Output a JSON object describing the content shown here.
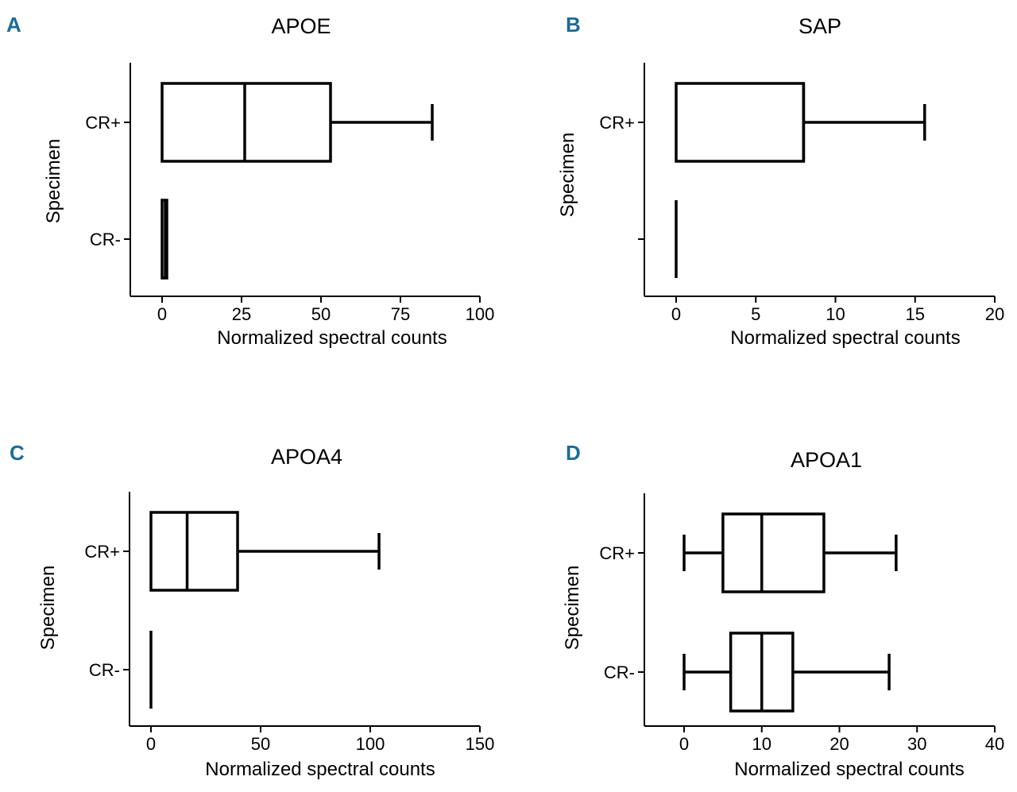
{
  "colors": {
    "panel_letter": "#1a6c96",
    "ink": "#000000"
  },
  "chart_data": [
    {
      "type": "boxplot",
      "panel": "A",
      "title": "APOE",
      "xlabel": "Normalized spectral counts",
      "ylabel": "Specimen",
      "xlim": [
        -10,
        100
      ],
      "xticks": [
        0,
        25,
        50,
        75,
        100
      ],
      "xtick_labels": [
        "0",
        "25",
        "50",
        "75",
        "100"
      ],
      "categories": [
        "CR+",
        "CR-"
      ],
      "series": [
        {
          "name": "CR+",
          "min": 0,
          "q1": 0,
          "median": 26,
          "q3": 53,
          "max": 85
        },
        {
          "name": "CR-",
          "min": 0,
          "q1": 0,
          "median": 1,
          "q3": 1.5,
          "max": 1.5
        }
      ]
    },
    {
      "type": "boxplot",
      "panel": "B",
      "title": "SAP",
      "xlabel": "Normalized spectral counts",
      "ylabel": "Specimen",
      "xlim": [
        -2,
        20
      ],
      "xticks": [
        0,
        5,
        10,
        15,
        20
      ],
      "xtick_labels": [
        "0",
        "5",
        "10",
        "15",
        "20"
      ],
      "categories": [
        "CR+",
        ""
      ],
      "series": [
        {
          "name": "CR+",
          "min": 0,
          "q1": 0,
          "median": 8,
          "q3": 8,
          "max": 15.6
        },
        {
          "name": "",
          "min": 0,
          "q1": 0,
          "median": 0,
          "q3": 0,
          "max": 0
        }
      ]
    },
    {
      "type": "boxplot",
      "panel": "C",
      "title": "APOA4",
      "xlabel": "Normalized spectral counts",
      "ylabel": "Specimen",
      "xlim": [
        -10,
        150
      ],
      "xticks": [
        0,
        50,
        100,
        150
      ],
      "xtick_labels": [
        "0",
        "50",
        "100",
        "150"
      ],
      "categories": [
        "CR+",
        "CR-"
      ],
      "series": [
        {
          "name": "CR+",
          "min": 0,
          "q1": 0,
          "median": 16.5,
          "q3": 39.5,
          "max": 104
        },
        {
          "name": "CR-",
          "min": 0,
          "q1": 0,
          "median": 0,
          "q3": 0,
          "max": 0
        }
      ]
    },
    {
      "type": "boxplot",
      "panel": "D",
      "title": "APOA1",
      "xlabel": "Normalized spectral counts",
      "ylabel": "Specimen",
      "xlim": [
        -5,
        40
      ],
      "xticks": [
        0,
        10,
        20,
        30,
        40
      ],
      "xtick_labels": [
        "0",
        "10",
        "20",
        "30",
        "40"
      ],
      "categories": [
        "CR+",
        "CR-"
      ],
      "series": [
        {
          "name": "CR+",
          "min": 0,
          "q1": 5,
          "median": 10,
          "q3": 18,
          "max": 27.3
        },
        {
          "name": "CR-",
          "min": 0,
          "q1": 6,
          "median": 10,
          "q3": 14,
          "max": 26.4
        }
      ]
    }
  ]
}
